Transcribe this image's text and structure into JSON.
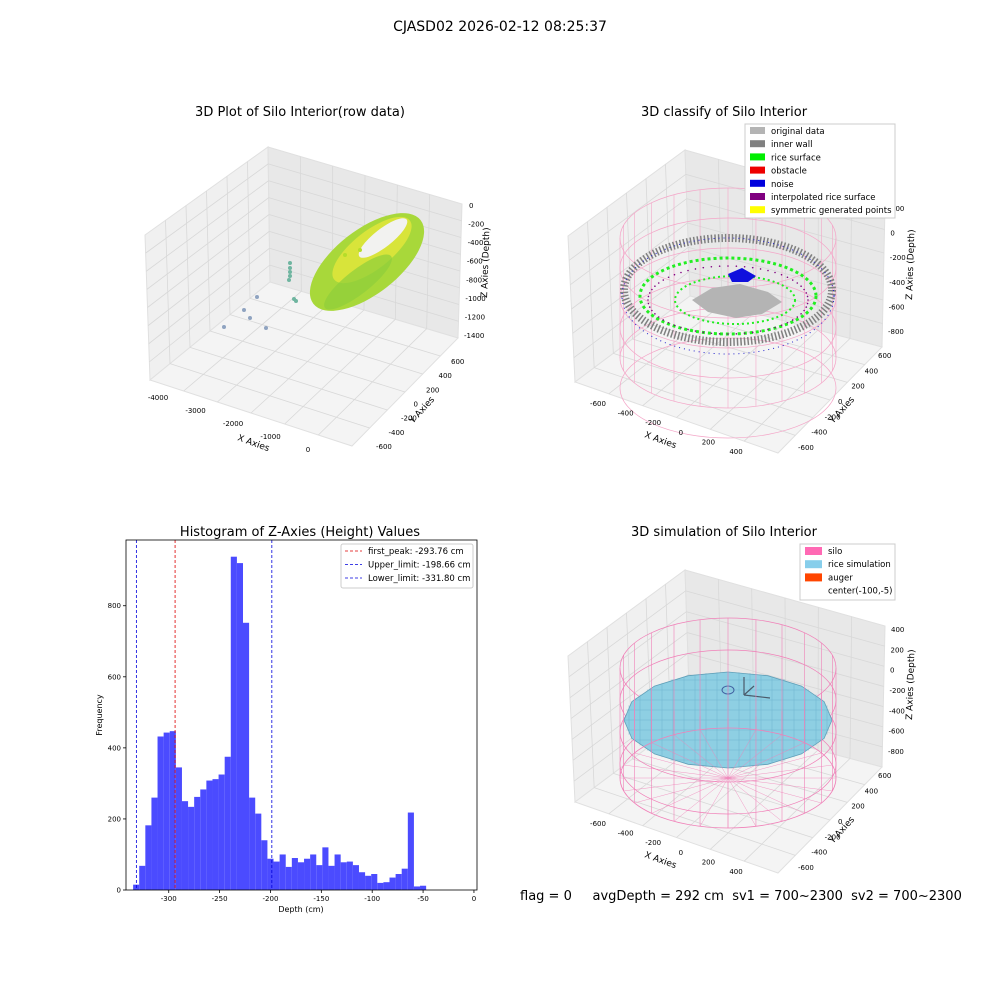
{
  "figure": {
    "suptitle": "CJASD02 2026-02-12 08:25:37",
    "status_line": {
      "flag": "flag = 0",
      "avg_depth": "avgDepth = 292 cm",
      "sv1": "sv1 = 700~2300",
      "sv2": "sv2 = 700~2300"
    }
  },
  "panel_raw": {
    "title": "3D Plot of Silo Interior(row data)",
    "xlabel": "X Axies",
    "ylabel": "Y Axies",
    "zlabel": "Z Axies (Depth)",
    "x_ticks": [
      "-4000",
      "-3000",
      "-2000",
      "-1000",
      "0"
    ],
    "y_ticks": [
      "600",
      "400",
      "200",
      "0",
      "-200",
      "-400",
      "-600"
    ],
    "z_ticks": [
      "0",
      "-200",
      "-400",
      "-600",
      "-800",
      "-1000",
      "-1200",
      "-1400"
    ],
    "colors": {
      "cloud": "#b5dd2a",
      "cloud_dark": "#8fcf3a",
      "outlier": "#6fb5a0",
      "outlier_far": "#8fa3c0"
    }
  },
  "panel_classify": {
    "title": "3D classify of Silo Interior",
    "xlabel": "X Axies",
    "ylabel": "Y Axies",
    "zlabel": "Z Axies (Depth)",
    "x_ticks": [
      "-600",
      "-400",
      "-200",
      "0",
      "200",
      "400"
    ],
    "y_ticks": [
      "600",
      "400",
      "200",
      "0",
      "-200",
      "-400",
      "-600"
    ],
    "z_ticks": [
      "200",
      "0",
      "-200",
      "-400",
      "-600",
      "-800"
    ],
    "legend": [
      {
        "label": "original data",
        "color": "#b4b4b4"
      },
      {
        "label": "inner wall",
        "color": "#808080"
      },
      {
        "label": "rice surface",
        "color": "#00ee00"
      },
      {
        "label": "obstacle",
        "color": "#ee0000"
      },
      {
        "label": "noise",
        "color": "#0000dd"
      },
      {
        "label": "interpolated rice surface",
        "color": "#800080"
      },
      {
        "label": "symmetric generated points",
        "color": "#ffff00"
      }
    ],
    "colors": {
      "wireframe": "#f4a6c8"
    }
  },
  "panel_sim": {
    "title": "3D simulation of Silo Interior",
    "xlabel": "X Axies",
    "ylabel": "Y Axies",
    "zlabel": "Z Axies (Depth)",
    "x_ticks": [
      "-600",
      "-400",
      "-200",
      "0",
      "200",
      "400"
    ],
    "y_ticks": [
      "600",
      "400",
      "200",
      "0",
      "-200",
      "-400",
      "-600"
    ],
    "z_ticks": [
      "400",
      "200",
      "0",
      "-200",
      "-400",
      "-600",
      "-800"
    ],
    "legend": [
      {
        "label": "silo",
        "color": "#ff69b4"
      },
      {
        "label": "rice simulation",
        "color": "#87ceeb"
      },
      {
        "label": "auger",
        "color": "#ff4500"
      },
      {
        "label": "center(-100,-5)",
        "color": ""
      }
    ]
  },
  "chart_data": {
    "type": "bar",
    "title": "Histogram of Z-Axies (Height) Values",
    "xlabel": "Depth (cm)",
    "ylabel": "Frequency",
    "xlim": [
      -342,
      3
    ],
    "ylim": [
      0,
      985
    ],
    "bin_start": -335,
    "bin_width": 6,
    "values": [
      15,
      68,
      182,
      260,
      432,
      443,
      447,
      345,
      250,
      234,
      262,
      283,
      308,
      312,
      325,
      375,
      938,
      920,
      752,
      260,
      215,
      140,
      88,
      80,
      100,
      65,
      90,
      78,
      88,
      100,
      70,
      120,
      68,
      100,
      78,
      80,
      70,
      50,
      40,
      45,
      20,
      22,
      35,
      45,
      60,
      218,
      10,
      12
    ],
    "x_ticks": [
      -300,
      -250,
      -200,
      -150,
      -100,
      -50,
      0
    ],
    "y_ticks": [
      0,
      200,
      400,
      600,
      800
    ],
    "bar_color": "#4b4bff",
    "vlines": [
      {
        "label": "first_peak: -293.76 cm",
        "x": -293.76,
        "color": "#dd0000"
      },
      {
        "label": "Upper_limit: -198.66 cm",
        "x": -198.66,
        "color": "#0000dd"
      },
      {
        "label": "Lower_limit: -331.80 cm",
        "x": -331.8,
        "color": "#0000dd"
      }
    ],
    "legend_position": "top-right",
    "grid": false
  }
}
